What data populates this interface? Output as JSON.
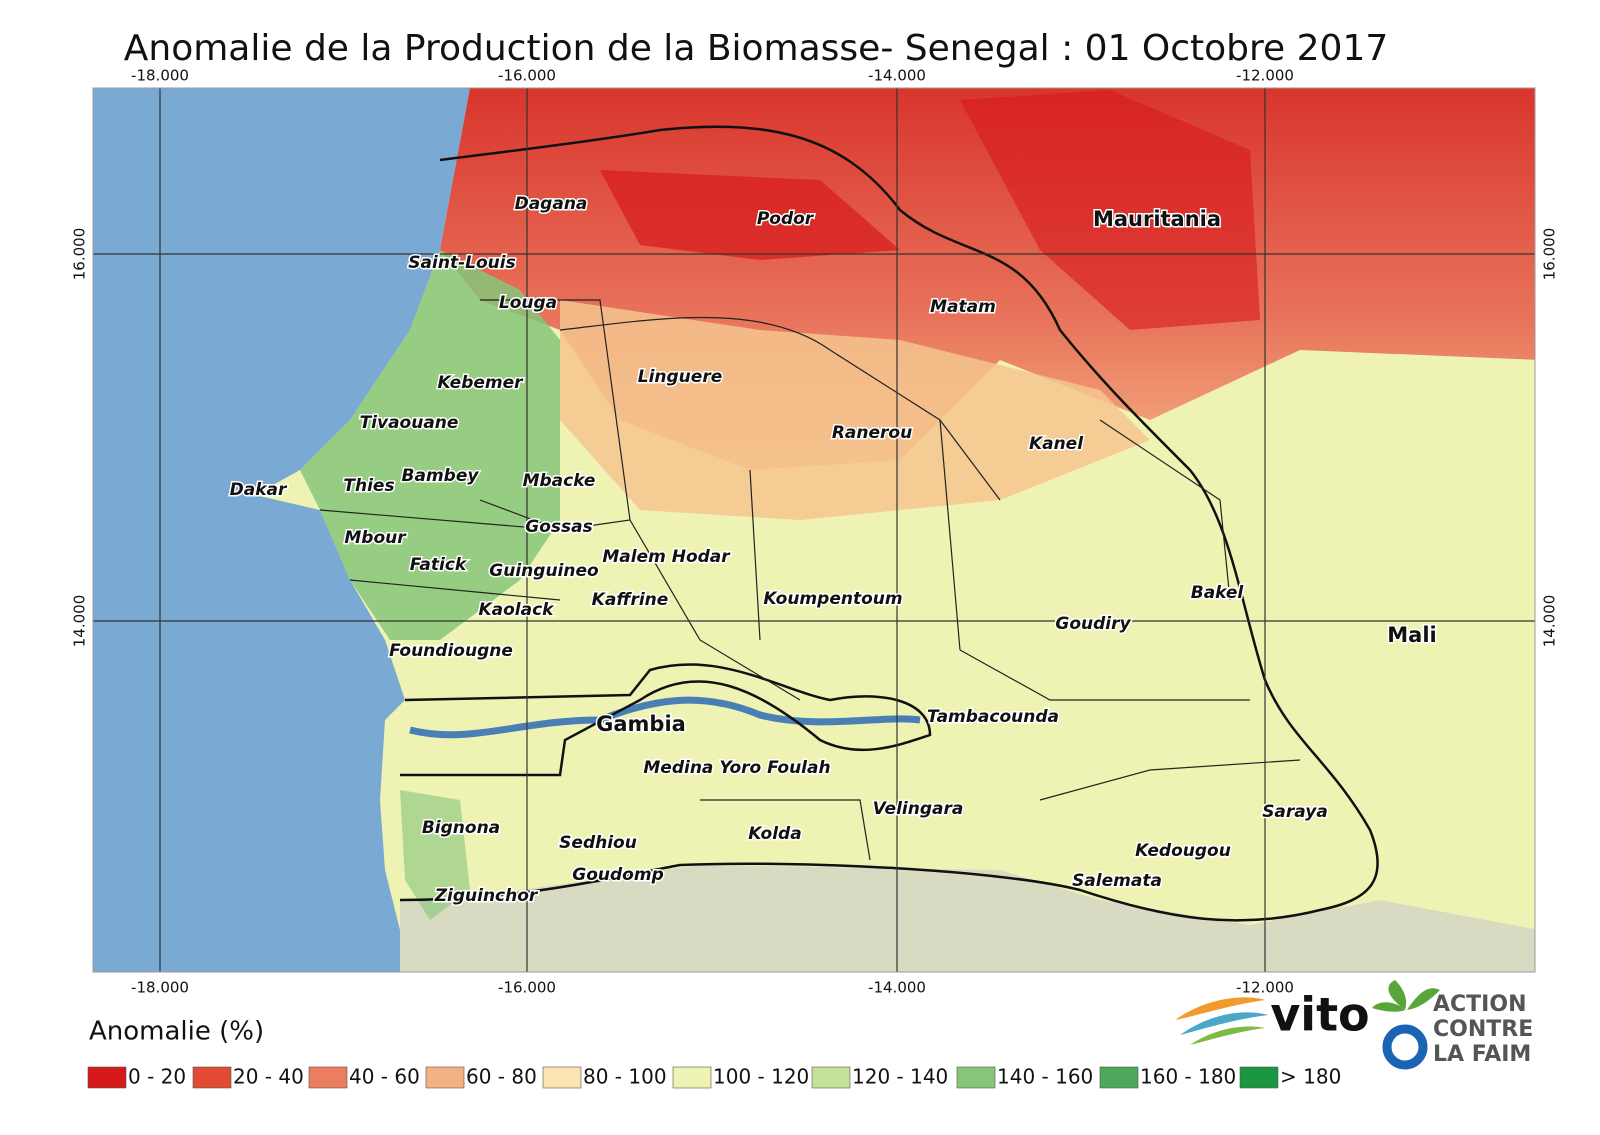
{
  "title": "Anomalie de la Production de la Biomasse- Senegal : 01 Octobre 2017",
  "graticule": {
    "lon_labels": [
      "-18.000",
      "-16.000",
      "-14.000",
      "-12.000"
    ],
    "lat_labels": [
      "16.000",
      "14.000"
    ]
  },
  "places": [
    "Dagana",
    "Podor",
    "Saint-Louis",
    "Louga",
    "Matam",
    "Linguere",
    "Kebemer",
    "Tivaouane",
    "Ranerou",
    "Kanel",
    "Bambey",
    "Thies",
    "Mbacke",
    "Dakar",
    "Gossas",
    "Malem Hodar",
    "Mbour",
    "Fatick",
    "Guinguineo",
    "Kaffrine",
    "Koumpentoum",
    "Bakel",
    "Kaolack",
    "Goudiry",
    "Foundiougne",
    "Tambacounda",
    "Medina Yoro Foulah",
    "Velingara",
    "Saraya",
    "Bignona",
    "Kolda",
    "Sedhiou",
    "Kedougou",
    "Goudomp",
    "Salemata",
    "Ziguinchor"
  ],
  "countries": [
    "Mauritania",
    "Gambia",
    "Mali"
  ],
  "legend": {
    "title": "Anomalie (%)",
    "classes": [
      {
        "label": "0 - 20",
        "color": "#d7191c"
      },
      {
        "label": "20 - 40",
        "color": "#e34a33"
      },
      {
        "label": "40 - 60",
        "color": "#ec7e5f"
      },
      {
        "label": "60 - 80",
        "color": "#f4b183"
      },
      {
        "label": "80 - 100",
        "color": "#fce3b0"
      },
      {
        "label": "100 - 120",
        "color": "#eef3b4"
      },
      {
        "label": "120 - 140",
        "color": "#c2e29a"
      },
      {
        "label": "140 - 160",
        "color": "#86c57a"
      },
      {
        "label": "160 - 180",
        "color": "#4ea85a"
      },
      {
        "label": "> 180",
        "color": "#1a9641"
      }
    ]
  },
  "logos": {
    "vito": "vito",
    "acf": [
      "ACTION",
      "CONTRE",
      "LA FAIM"
    ]
  }
}
